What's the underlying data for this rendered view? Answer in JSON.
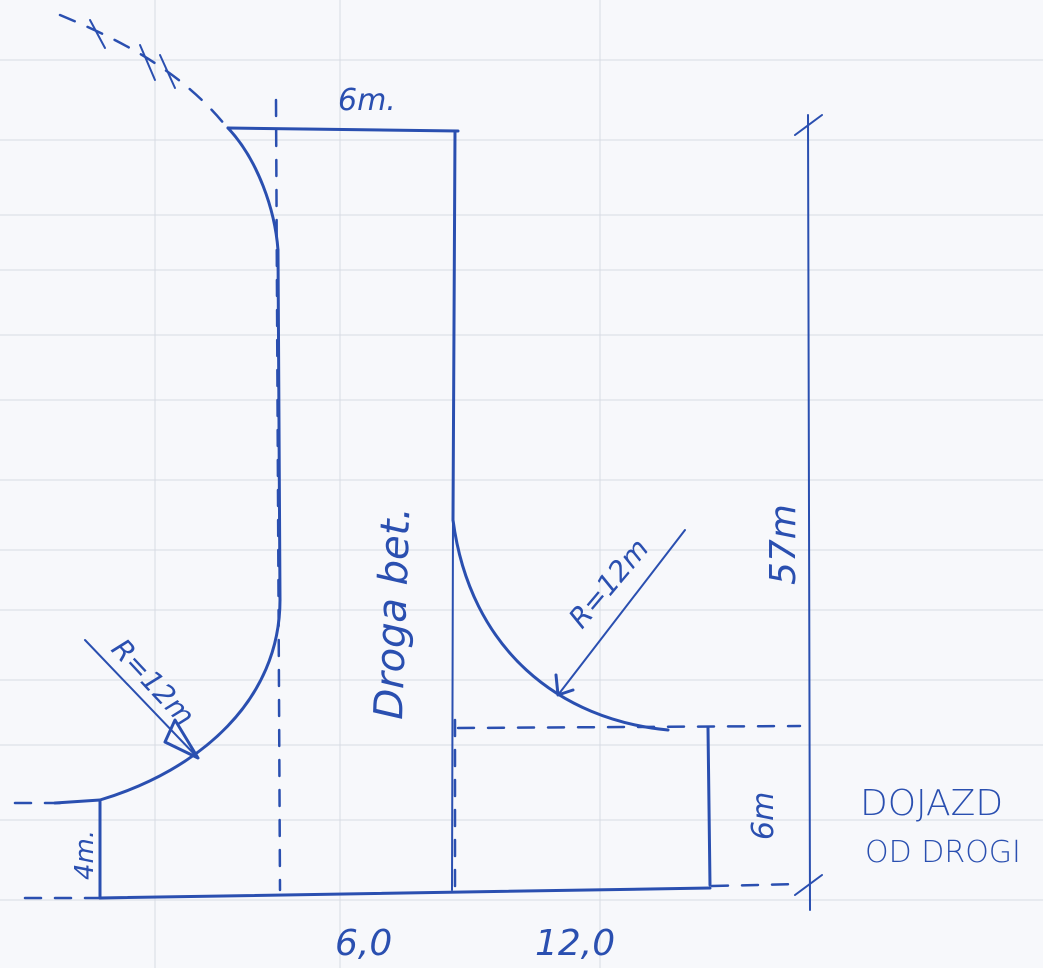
{
  "diagram": {
    "labels": {
      "top_width": "6m.",
      "road_name": "Droga bet.",
      "radius_left": "R=12m",
      "radius_right": "R=12m",
      "total_length": "57m",
      "right_depth": "6m",
      "left_depth": "4m.",
      "bottom_left_width": "6,0",
      "bottom_right_width": "12,0",
      "access_line1": "DOJAZD",
      "access_line2": "OD DROGI"
    },
    "colors": {
      "ink": "#2a4fb0",
      "paper": "#f7f8fb",
      "faint_print": "#c9ced8"
    }
  }
}
